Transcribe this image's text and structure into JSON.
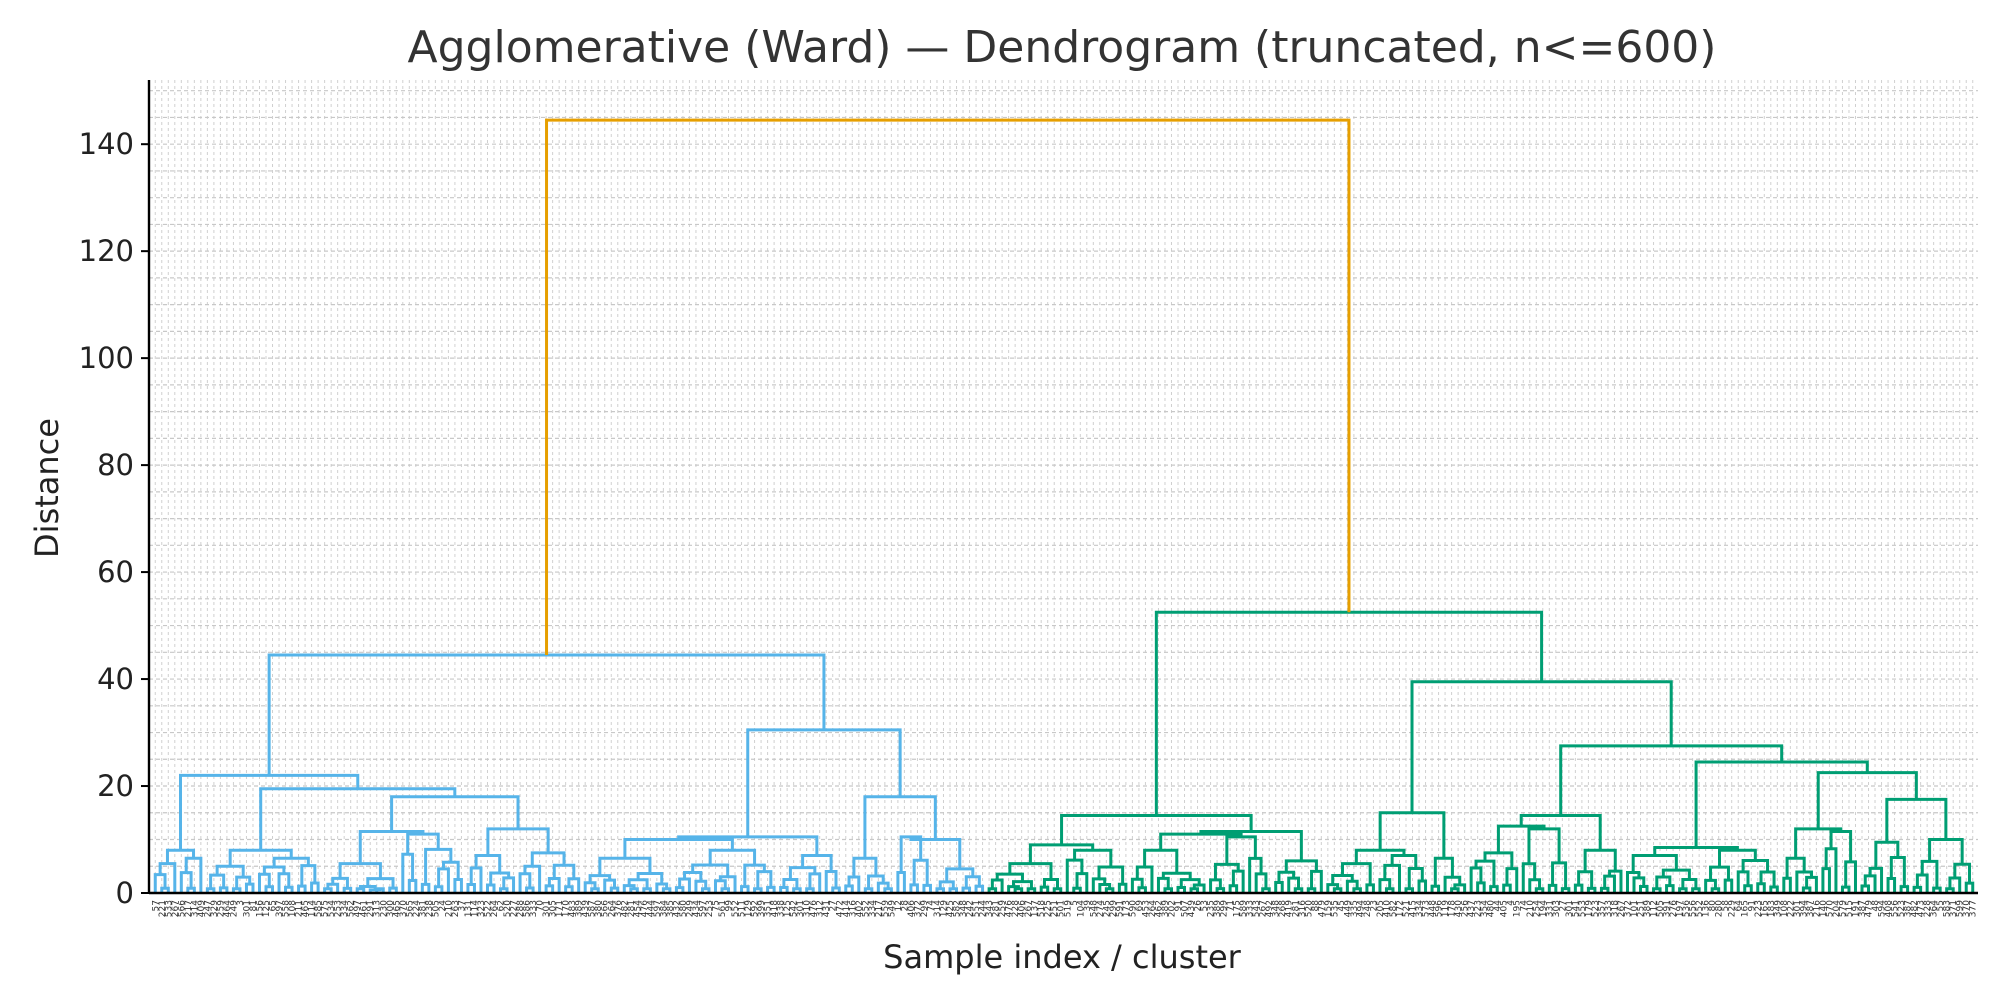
{
  "chart_data": {
    "type": "dendrogram",
    "title": "Agglomerative (Ward) — Dendrogram (truncated, n<=600)",
    "xlabel": "Sample index / cluster",
    "ylabel": "Distance",
    "ylim": [
      0,
      152
    ],
    "yticks": [
      0,
      20,
      40,
      60,
      80,
      100,
      120,
      140
    ],
    "grid": true,
    "colors": {
      "cluster_blue": "#56b4e9",
      "cluster_green": "#009e73",
      "root": "#e69f00",
      "axis": "#000000",
      "grid": "#c8c8c8",
      "title": "#333333"
    },
    "leaf_count": 280,
    "blue_leaf_count": 128,
    "links": [
      {
        "left": "blue",
        "right": "green",
        "height": 144.5,
        "color": "root"
      },
      {
        "node": "blue",
        "left": "b-left",
        "right": "b-right",
        "height": 44.5,
        "color": "cluster_blue"
      },
      {
        "node": "b-left",
        "left": "b-left-a",
        "right": "b-left-b",
        "height": 22,
        "color": "cluster_blue"
      },
      {
        "node": "b-left-b",
        "left": "b-left-b1",
        "right": "b-left-b2",
        "height": 19.5,
        "color": "cluster_blue"
      },
      {
        "node": "b-left-b2",
        "left": "b-left-b2a",
        "right": "b-left-b2b",
        "height": 18,
        "color": "cluster_blue"
      },
      {
        "node": "b-right",
        "left": "b-right-a",
        "right": "b-right-b",
        "height": 30.5,
        "color": "cluster_blue"
      },
      {
        "node": "b-right-b",
        "left": "b-right-b1",
        "right": "b-right-b2",
        "height": 18,
        "color": "cluster_blue"
      },
      {
        "node": "green",
        "left": "g-left",
        "right": "g-right",
        "height": 52.5,
        "color": "cluster_green"
      },
      {
        "node": "g-left",
        "left": "g-left-a",
        "right": "g-left-b",
        "height": 14.5,
        "color": "cluster_green"
      },
      {
        "node": "g-right",
        "left": "g-right-a",
        "right": "g-right-b",
        "height": 39.5,
        "color": "cluster_green"
      },
      {
        "node": "g-right-b",
        "left": "g-right-b1",
        "right": "g-right-b2",
        "height": 27.5,
        "color": "cluster_green"
      },
      {
        "node": "g-right-b2",
        "left": "g-right-b2a",
        "right": "g-right-b2b",
        "height": 24.5,
        "color": "cluster_green"
      },
      {
        "node": "g-right-b2b",
        "left": "g-right-b2b1",
        "right": "g-right-b2b2",
        "height": 22.5,
        "color": "cluster_green"
      },
      {
        "node": "g-right-a",
        "left": "g-right-a1",
        "right": "g-right-a2",
        "height": 15,
        "color": "cluster_green"
      }
    ]
  }
}
